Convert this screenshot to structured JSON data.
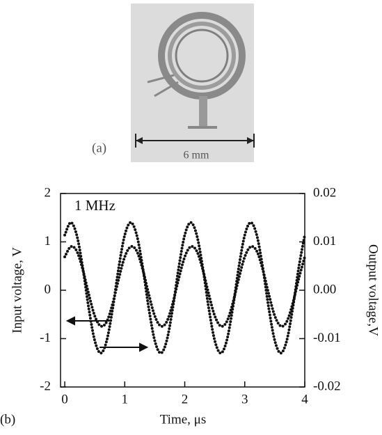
{
  "panel_a": {
    "label": "(a)",
    "scale_label": "6 mm"
  },
  "chart_data": {
    "type": "line",
    "panel_label": "(b)",
    "annotation": "1 MHz",
    "xlabel": "Time, μs",
    "ylabel": "Input voltage, V",
    "y2label": "Output voltage,V",
    "x": [
      0,
      0.1,
      0.2,
      0.3,
      0.4,
      0.5,
      0.6,
      0.7,
      0.8,
      0.9,
      1,
      1.1,
      1.2,
      1.3,
      1.4,
      1.5,
      1.6,
      1.7,
      1.8,
      1.9,
      2,
      2.1,
      2.2,
      2.3,
      2.4,
      2.5,
      2.6,
      2.7,
      2.8,
      2.9,
      3,
      3.1,
      3.2,
      3.3,
      3.4,
      3.5,
      3.6,
      3.7,
      3.8,
      3.9,
      4
    ],
    "series": [
      {
        "color": "#111111",
        "values": [
          0.69,
          0.9,
          0.81,
          0.43,
          -0.08,
          -0.53,
          -0.74,
          -0.65,
          -0.27,
          0.24,
          0.69,
          0.9,
          0.81,
          0.43,
          -0.08,
          -0.53,
          -0.74,
          -0.65,
          -0.27,
          0.24,
          0.69,
          0.9,
          0.81,
          0.43,
          -0.08,
          -0.53,
          -0.74,
          -0.65,
          -0.27,
          0.24,
          0.69,
          0.9,
          0.81,
          0.43,
          -0.08,
          -0.53,
          -0.74,
          -0.65,
          -0.27,
          0.24,
          0.69
        ]
      },
      {
        "color": "#111111",
        "axis": "y2",
        "values": [
          0.0114,
          0.014,
          0.0114,
          0.0047,
          -0.0037,
          -0.0104,
          -0.013,
          -0.0104,
          -0.0037,
          0.0047,
          0.0114,
          0.014,
          0.0114,
          0.0047,
          -0.0037,
          -0.0104,
          -0.013,
          -0.0104,
          -0.0037,
          0.0047,
          0.0114,
          0.014,
          0.0114,
          0.0047,
          -0.0037,
          -0.0104,
          -0.013,
          -0.0104,
          -0.0037,
          0.0047,
          0.0114,
          0.014,
          0.0114,
          0.0047,
          -0.0037,
          -0.0104,
          -0.013,
          -0.0104,
          -0.0037,
          0.0047,
          0.0114
        ]
      }
    ],
    "xlim": [
      -0.07,
      4
    ],
    "xticks": [
      0,
      1,
      2,
      3,
      4
    ],
    "ylim": [
      -2,
      2
    ],
    "yticks": [
      -2,
      -1,
      0,
      1,
      2
    ],
    "y2lim": [
      -0.02,
      0.02
    ],
    "y2ticks": [
      -0.02,
      -0.01,
      {
        "value": 0,
        "label": "0.00"
      },
      0.01,
      0.02
    ]
  }
}
